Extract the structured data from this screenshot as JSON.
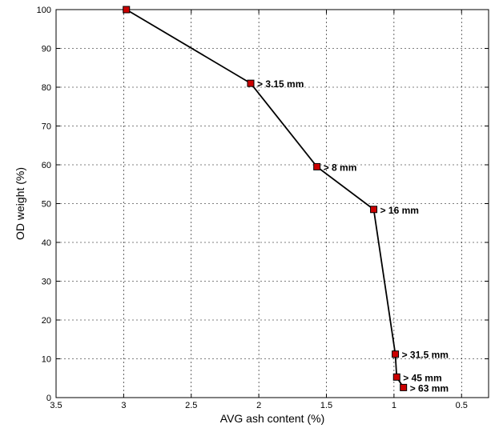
{
  "chart_data": {
    "type": "line",
    "title": "",
    "xlabel": "AVG ash content (%)",
    "ylabel": "OD weight (%)",
    "xlim": [
      3.5,
      0.3
    ],
    "ylim": [
      0,
      100
    ],
    "x_reversed": true,
    "grid": true,
    "x_ticks": [
      3.5,
      3,
      2.5,
      2,
      1.5,
      1,
      0.5
    ],
    "x_tick_labels": [
      "3.5",
      "3",
      "2.5",
      "2",
      "1.5",
      "1",
      "0.5"
    ],
    "y_ticks": [
      0,
      10,
      20,
      30,
      40,
      50,
      60,
      70,
      80,
      90,
      100
    ],
    "y_tick_labels": [
      "0",
      "10",
      "20",
      "30",
      "40",
      "50",
      "60",
      "70",
      "80",
      "90",
      "100"
    ],
    "series": [
      {
        "color": "#000000",
        "marker_color": "#cc0000",
        "marker": "square",
        "points": [
          {
            "x": 2.98,
            "y": 100,
            "label": ""
          },
          {
            "x": 2.06,
            "y": 81,
            "label": "> 3.15 mm"
          },
          {
            "x": 1.57,
            "y": 59.5,
            "label": "> 8 mm"
          },
          {
            "x": 1.15,
            "y": 48.5,
            "label": "> 16 mm"
          },
          {
            "x": 0.99,
            "y": 11.2,
            "label": "> 31.5 mm"
          },
          {
            "x": 0.98,
            "y": 5.3,
            "label": "> 45 mm"
          },
          {
            "x": 0.93,
            "y": 2.6,
            "label": "> 63 mm"
          }
        ]
      }
    ]
  }
}
